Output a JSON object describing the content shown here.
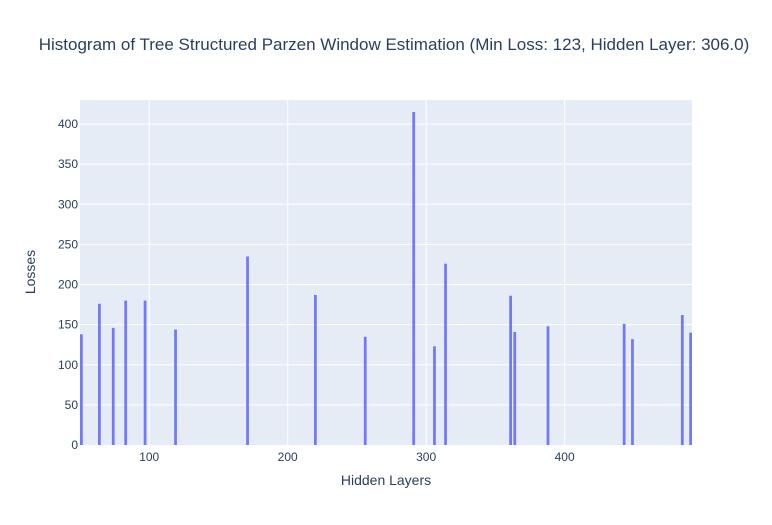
{
  "chart_data": {
    "type": "bar",
    "title": "Histogram of Tree Structured Parzen Window Estimation (Min Loss: 123, Hidden Layer: 306.0)",
    "xlabel": "Hidden Layers",
    "ylabel": "Losses",
    "xlim": [
      50,
      492
    ],
    "ylim": [
      0,
      430
    ],
    "x_ticks": [
      100,
      200,
      300,
      400
    ],
    "y_ticks": [
      0,
      50,
      100,
      150,
      200,
      250,
      300,
      350,
      400
    ],
    "bar_width": 2,
    "grid": true,
    "bar_color": "#636efa",
    "plot_bg": "#e5ecf6",
    "bars": [
      {
        "x": 51,
        "y": 138
      },
      {
        "x": 64,
        "y": 176
      },
      {
        "x": 74,
        "y": 146
      },
      {
        "x": 83,
        "y": 180
      },
      {
        "x": 97,
        "y": 180
      },
      {
        "x": 119,
        "y": 144
      },
      {
        "x": 171,
        "y": 235
      },
      {
        "x": 220,
        "y": 187
      },
      {
        "x": 256,
        "y": 135
      },
      {
        "x": 291,
        "y": 415
      },
      {
        "x": 306,
        "y": 123
      },
      {
        "x": 314,
        "y": 226
      },
      {
        "x": 361,
        "y": 186
      },
      {
        "x": 364,
        "y": 141
      },
      {
        "x": 388,
        "y": 148
      },
      {
        "x": 443,
        "y": 151
      },
      {
        "x": 449,
        "y": 132
      },
      {
        "x": 485,
        "y": 162
      },
      {
        "x": 491,
        "y": 140
      }
    ]
  }
}
